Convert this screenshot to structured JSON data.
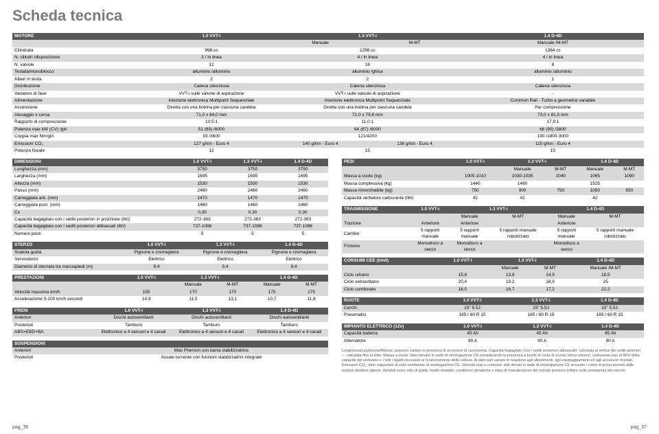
{
  "title": "Scheda tecnica",
  "page_left": "pag_36",
  "page_right": "pag_37",
  "motore": {
    "header": [
      "MOTORE",
      "1.0 VVT-i",
      "1.3 VVT-i",
      "",
      "1.4 D-4D",
      ""
    ],
    "subheader": [
      "",
      "",
      "Manuale",
      "M-MT",
      "Manuale /M-MT",
      ""
    ],
    "rows": [
      [
        "Cilindrata",
        "998 cc",
        "1298 cc",
        "",
        "1364 cc",
        ""
      ],
      [
        "N. cilindri /disposizione",
        "3 / in linea",
        "4 / in linea",
        "",
        "4 / in linea",
        ""
      ],
      [
        "N. valvole",
        "12",
        "16",
        "",
        "8",
        ""
      ],
      [
        "Testata/monoblocco",
        "alluminio /alluminio",
        "alluminio /ghisa",
        "",
        "alluminio /alluminio",
        ""
      ],
      [
        "Alberi in testa",
        "2",
        "2",
        "",
        "1",
        ""
      ],
      [
        "Distribuzione",
        "Catena silenziosa",
        "Catena silenziosa",
        "",
        "Catena silenziosa",
        ""
      ],
      [
        "Variatore di fase",
        "VVT-i sulle valvole di aspirazione",
        "VVT-i sulle valvole di aspirazione",
        "",
        "-",
        ""
      ],
      [
        "Alimentazione",
        "Iniezione elettronica Multipoint Sequenziale",
        "Iniezione elettronica Multipoint Sequenziale",
        "",
        "Common Rail - Turbo a geometria variabile",
        ""
      ],
      [
        "Accensione",
        "Diretta con una bobina per ciascuna candela",
        "Diretta con una bobina per ciascuna candela",
        "",
        "Per compressione",
        ""
      ],
      [
        "Alesaggio x corsa",
        "71,0 x 84,0 mm",
        "72,0 x 79,6 mm",
        "",
        "73,0 x 81,5 mm",
        ""
      ],
      [
        "Rapporto di compressione",
        "10,5:1",
        "11,0:1",
        "",
        "17,9:1",
        ""
      ],
      [
        "Potenza max kW (CV) /giri",
        "51 (69) /6000",
        "64 (87) /6000",
        "",
        "66 (90) /3800",
        ""
      ],
      [
        "Coppia max Nm/giri",
        "93 /3600",
        "121/4200",
        "",
        "190 /1800-3000",
        ""
      ],
      [
        "Emissioni CO₂",
        "127 g/km - Euro 4",
        "140 g/km - Euro 4",
        "136 g/km - Euro 4",
        "119 g/km - Euro 4",
        ""
      ],
      [
        "Potenza fiscale",
        "12",
        "15",
        "",
        "15",
        ""
      ]
    ]
  },
  "dimensioni": {
    "header": [
      "DIMENSIONI",
      "1.0 VVT-i",
      "1.3 VVT-i",
      "1.4 D-4D"
    ],
    "rows": [
      [
        "Lunghezza (mm)",
        "3750",
        "3750",
        "3750"
      ],
      [
        "Larghezza (mm)",
        "1695",
        "1695",
        "1695"
      ],
      [
        "Altezza (mm)",
        "1530",
        "1530",
        "1530"
      ],
      [
        "Passo (mm)",
        "2460",
        "2460",
        "2460"
      ],
      [
        "Carreggiata ant. (mm)",
        "1470",
        "1470",
        "1470"
      ],
      [
        "Carreggiata post. (mm)",
        "1460",
        "1460",
        "1460"
      ],
      [
        "Cx",
        "0,30",
        "0,30",
        "0,30"
      ],
      [
        "Capacità bagagliaio con i sedili posteriori in posizione (litri)",
        "272-363",
        "272-363",
        "272-363"
      ],
      [
        "Capacità bagagliaio con i sedili posteriori abbassati (litri)",
        "737-1086",
        "737-1086",
        "737-1086"
      ],
      [
        "Numero posti",
        "5",
        "5",
        "5"
      ]
    ]
  },
  "sterzo": {
    "header": [
      "STERZO",
      "1.0 VVT-i",
      "1.3 VVT-i",
      "1.4 D-4D"
    ],
    "rows": [
      [
        "Scatola guida",
        "Pignone e cremagliera",
        "Pignone e cremagliera",
        "Pignone e cremagliera"
      ],
      [
        "Servosterzo",
        "Elettrico",
        "Elettrico",
        "Elettrico"
      ],
      [
        "Diametro di sterzata tra marciapiedi (m)",
        "9,4",
        "9,4",
        "9,4"
      ]
    ]
  },
  "prestazioni": {
    "header": [
      "PRESTAZIONI",
      "1.0 VVT-i",
      "1.3 VVT-i",
      "",
      "1.4 D-4D",
      ""
    ],
    "subheader": [
      "",
      "",
      "Manuale",
      "M-MT",
      "Manuale",
      "M-MT"
    ],
    "rows": [
      [
        "Velocità massima km/h",
        "155",
        "170",
        "170",
        "175",
        "175"
      ],
      [
        "Accelerazione 0-100 km/h secondi",
        "14,9",
        "11,5",
        "13,1",
        "10,7",
        "11,8"
      ]
    ]
  },
  "freni": {
    "header": [
      "FRENI",
      "1.0 VVT-i",
      "1.3 VVT-i",
      "1.4 D-4D"
    ],
    "rows": [
      [
        "Anteriori",
        "Dischi autoventilanti",
        "Dischi autoventilanti",
        "Dischi autoventilanti"
      ],
      [
        "Posteriori",
        "Tamburo",
        "Tamburo",
        "Tamburo"
      ],
      [
        "ABS+EBD+BA",
        "Elettronico a 4 sensori e 4 canali",
        "Elettronico a 4 sensori e 4 canali",
        "Elettronico a 4 sensori e 4 canali"
      ]
    ]
  },
  "sospensioni": {
    "header": [
      "SOSPENSIONI",
      ""
    ],
    "rows": [
      [
        "Anteriori",
        "Mac Pherson con barra stabilizzatrice"
      ],
      [
        "Posteriori",
        "Assale torcente con funzioni stabilizzatrici integrate"
      ]
    ]
  },
  "pesi": {
    "header": [
      "PESI",
      "1.0 VVT-i",
      "1.3 VVT-i",
      "",
      "1.4 D-4D",
      ""
    ],
    "subheader": [
      "",
      "",
      "Manuale",
      "M-MT",
      "Manuale",
      "M-MT"
    ],
    "rows": [
      [
        "Massa a vuoto (kg)",
        "1005-1010",
        "1030-1035",
        "1040",
        "1065",
        "1090"
      ],
      [
        "Massa complessiva (kg)",
        "1440",
        "1480",
        "",
        "1525",
        ""
      ],
      [
        "Massa rimorchiabile (kg)",
        "750",
        "900",
        "750",
        "1050",
        "950"
      ],
      [
        "Capacità serbatoio carburante (litri)",
        "42",
        "42",
        "",
        "42",
        ""
      ]
    ]
  },
  "trasmissione": {
    "header": [
      "TRASMISSIONE",
      "1.0 VVT-i",
      "1.3 VVT-i",
      "",
      "1.4 D-4D",
      ""
    ],
    "subheader": [
      "",
      "",
      "Manuale",
      "M-MT",
      "Manuale",
      "M-MT"
    ],
    "rows": [
      [
        "Trazione",
        "Anteriore",
        "Anteriore",
        "",
        "Anteriore",
        ""
      ],
      [
        "Cambio",
        "5 rapporti manuale",
        "5 rapporti manuale",
        "5 rapporti manuale robotizzato",
        "5 rapporti manuale",
        "5 rapporti manuale robotizzato"
      ],
      [
        "Frizione",
        "Monodisco a secco",
        "Monodisco a secco",
        "",
        "Monodisco a secco",
        ""
      ]
    ]
  },
  "consumi": {
    "header": [
      "CONSUMI CEE (km/l)",
      "1.0 VVT-i",
      "1.3 VVT-i",
      "",
      "1.4 D-4D"
    ],
    "subheader": [
      "",
      "",
      "Manuale",
      "M-MT",
      "Manuale /M-MT"
    ],
    "rows": [
      [
        "Ciclo urbano",
        "15,6",
        "13,9",
        "14,9",
        "18,5"
      ],
      [
        "Ciclo extraurbano",
        "20,4",
        "19,2",
        "18,9",
        "25"
      ],
      [
        "Ciclo combinato",
        "18,5",
        "16,7",
        "17,2",
        "22,2"
      ]
    ]
  },
  "ruote": {
    "header": [
      "RUOTE",
      "1.0 VVT-i",
      "1.3 VVT-i",
      "1.4 D-4D"
    ],
    "rows": [
      [
        "Cerchi",
        "15\" 5.5J",
        "15\" 5.5J",
        "15\" 5.5J"
      ],
      [
        "Pneumatici",
        "185 / 60 R 15",
        "185 / 60 R 15",
        "185 / 60 R 15"
      ]
    ]
  },
  "impianto": {
    "header": [
      "IMPIANTO ELETTRICO (12v)",
      "1.0 VVT-i",
      "1.3 VVT-i",
      "1.4 D-4D"
    ],
    "rows": [
      [
        "Capacità batteria",
        "45 Ah",
        "45 Ah",
        "45 Ah"
      ],
      [
        "Alternatore",
        "90 A",
        "90 A",
        "90 A"
      ]
    ]
  },
  "footnote": "Lunghezza/Larghezza/Altezza: possono variare in presenza di accessori di carrozzeria. Capacità bagagliaio (con i sedili posteriori abbassati): calcolata al vertice dei sedili anteriori — calcolata fino al tetto. Massa a vuoto: dato rilevato in sede di omologazione CE considerando la presenza a bordo di ruota di scorta, borsa attrezzi, carburante pari al 90% della capacità del serbatoio e i tutti i liquidi necessari al funzionamento della vettura. Al dato può variare in relazione agli allestimenti, agli equipaggiamenti ed agli accessori montati. Emissioni CO₂: dato rapportato al ciclo combinato di omologazione CE. Velocità max e consumi: dati rilevati in sede di omologazione CE secondo i criteri di prova previsti dalle relative direttive vigenti. Variabili come stile di guida, fondo stradale, condizioni climatiche e stato di manutenzione del veicolo possono influire sulle prestazioni del veicolo."
}
